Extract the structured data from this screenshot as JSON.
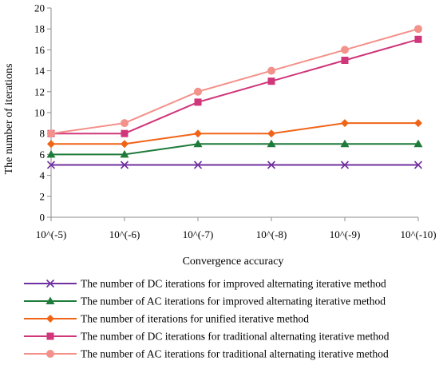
{
  "chart_data": {
    "type": "line",
    "title": "",
    "xlabel": "Convergence accuracy",
    "ylabel": "The number of iterations",
    "categories": [
      "10^(-5)",
      "10^(-6)",
      "10^(-7)",
      "10^(-8)",
      "10^(-9)",
      "10^(-10)"
    ],
    "ylim": [
      0,
      20
    ],
    "yticks": [
      0,
      2,
      4,
      6,
      8,
      10,
      12,
      14,
      16,
      18,
      20
    ],
    "grid": false,
    "legend_position": "bottom",
    "series": [
      {
        "name": "The number of DC iterations for improved alternating iterative method",
        "values": [
          5,
          5,
          5,
          5,
          5,
          5
        ],
        "color": "#7030A0",
        "marker": "x"
      },
      {
        "name": "The number of AC iterations for improved alternating iterative method",
        "values": [
          6,
          6,
          7,
          7,
          7,
          7
        ],
        "color": "#1E7B3A",
        "marker": "triangle"
      },
      {
        "name": "The number of iterations for unified iterative method",
        "values": [
          7,
          7,
          8,
          8,
          9,
          9
        ],
        "color": "#F06418",
        "marker": "diamond"
      },
      {
        "name": "The number of DC iterations for traditional alternating iterative method",
        "values": [
          8,
          8,
          11,
          13,
          15,
          17
        ],
        "color": "#D0367A",
        "marker": "square"
      },
      {
        "name": "The number of AC iterations for traditional alternating iterative method",
        "values": [
          8,
          9,
          12,
          14,
          16,
          18
        ],
        "color": "#F4918A",
        "marker": "circle"
      }
    ]
  }
}
